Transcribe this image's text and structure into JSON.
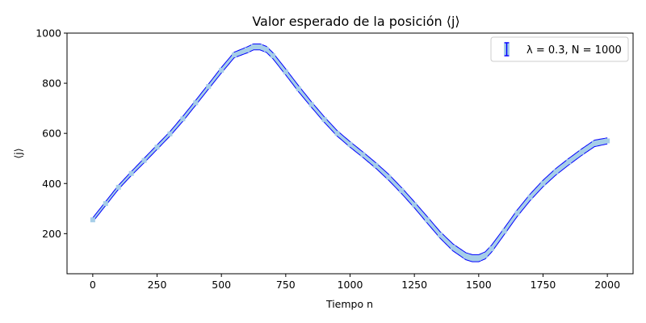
{
  "chart_data": {
    "type": "line",
    "title": "Valor esperado de la posición ⟨j⟩",
    "xlabel": "Tiempo n",
    "ylabel": "⟨j⟩",
    "xlim": [
      -100,
      2100
    ],
    "ylim": [
      40,
      1000
    ],
    "xticks": [
      0,
      250,
      500,
      750,
      1000,
      1250,
      1500,
      1750,
      2000
    ],
    "yticks": [
      200,
      400,
      600,
      800,
      1000
    ],
    "grid": false,
    "legend_position": "top-right",
    "series": [
      {
        "name": "λ = 0.3, N = 1000",
        "style": "errorbar",
        "line_color": "#0000ff",
        "band_color": "#a6cee8",
        "x": [
          0,
          50,
          100,
          150,
          200,
          250,
          300,
          350,
          400,
          450,
          500,
          550,
          600,
          625,
          650,
          675,
          700,
          750,
          800,
          850,
          900,
          950,
          1000,
          1050,
          1100,
          1150,
          1200,
          1250,
          1300,
          1350,
          1400,
          1450,
          1475,
          1500,
          1525,
          1550,
          1600,
          1650,
          1700,
          1750,
          1800,
          1850,
          1900,
          1950,
          2000
        ],
        "y": [
          255,
          320,
          385,
          440,
          492,
          545,
          598,
          658,
          722,
          787,
          852,
          913,
          933,
          945,
          945,
          935,
          910,
          845,
          778,
          715,
          655,
          600,
          556,
          515,
          472,
          425,
          372,
          315,
          255,
          195,
          145,
          110,
          102,
          102,
          113,
          140,
          210,
          282,
          345,
          400,
          447,
          487,
          525,
          560,
          570
        ],
        "err": [
          8,
          8,
          8,
          8,
          9,
          9,
          9,
          10,
          10,
          10,
          11,
          11,
          12,
          12,
          12,
          12,
          12,
          12,
          12,
          11,
          11,
          11,
          11,
          11,
          11,
          12,
          12,
          12,
          13,
          13,
          14,
          14,
          14,
          14,
          14,
          14,
          13,
          13,
          13,
          13,
          13,
          13,
          13,
          13,
          12
        ]
      }
    ]
  }
}
